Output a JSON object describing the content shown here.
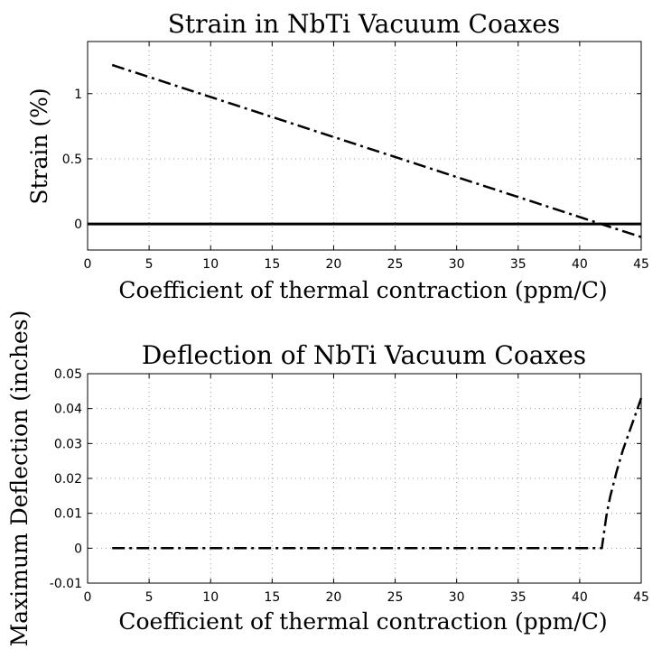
{
  "chart_data": [
    {
      "type": "line",
      "title": "Strain in NbTi Vacuum Coaxes",
      "xlabel": "Coefficient of thermal contraction (ppm/C)",
      "ylabel": "Strain (%)",
      "xlim": [
        0,
        45
      ],
      "ylim": [
        -0.2,
        1.4
      ],
      "xticks": [
        0,
        5,
        10,
        15,
        20,
        25,
        30,
        35,
        40,
        45
      ],
      "xtick_labels": [
        "0",
        "5",
        "10",
        "15",
        "20",
        "25",
        "30",
        "35",
        "40",
        "45"
      ],
      "yticks": [
        0,
        0.5,
        1
      ],
      "ytick_labels": [
        "0",
        "0.5",
        "1"
      ],
      "grid": true,
      "series": [
        {
          "style": "dash-dot",
          "color": "#000000",
          "x": [
            2,
            45
          ],
          "y": [
            1.22,
            -0.1
          ]
        }
      ],
      "reference_lines": [
        {
          "orientation": "horizontal",
          "y": 0,
          "style": "solid",
          "color": "#000000"
        }
      ]
    },
    {
      "type": "line",
      "title": "Deflection of NbTi Vacuum Coaxes",
      "xlabel": "Coefficient of thermal contraction (ppm/C)",
      "ylabel": "Maximum Deflection (inches)",
      "xlim": [
        0,
        45
      ],
      "ylim": [
        -0.01,
        0.05
      ],
      "xticks": [
        0,
        5,
        10,
        15,
        20,
        25,
        30,
        35,
        40,
        45
      ],
      "xtick_labels": [
        "0",
        "5",
        "10",
        "15",
        "20",
        "25",
        "30",
        "35",
        "40",
        "45"
      ],
      "yticks": [
        -0.01,
        0,
        0.01,
        0.02,
        0.03,
        0.04,
        0.05
      ],
      "ytick_labels": [
        "-0.01",
        "0",
        "0.01",
        "0.02",
        "0.03",
        "0.04",
        "0.05"
      ],
      "grid": true,
      "series": [
        {
          "style": "dash-dot",
          "color": "#000000",
          "x": [
            2,
            41.8,
            42.0,
            42.2,
            42.5,
            43.0,
            43.5,
            44.0,
            44.5,
            45.0
          ],
          "y": [
            0,
            0,
            0.005,
            0.01,
            0.015,
            0.022,
            0.028,
            0.033,
            0.038,
            0.043
          ]
        }
      ]
    }
  ]
}
